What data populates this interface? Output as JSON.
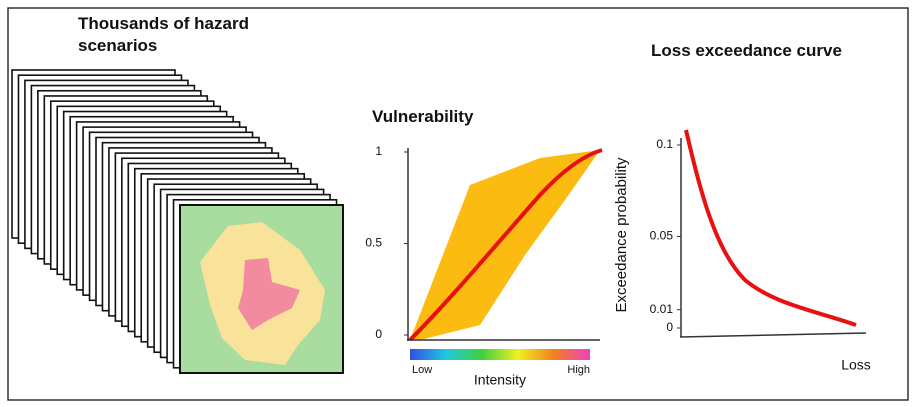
{
  "hazard": {
    "title": "Thousands of hazard scenarios"
  },
  "vulnerability": {
    "title": "Vulnerability",
    "ylim": [
      0,
      1
    ],
    "yticks": [
      0,
      0.5,
      1
    ],
    "x_low": "Low",
    "x_label": "Intensity",
    "x_high": "High"
  },
  "loss_curve": {
    "title": "Loss exceedance curve",
    "ylim": [
      0,
      0.1
    ],
    "yticks": [
      0,
      0.01,
      0.05,
      0.1
    ],
    "y_label": "Exceedance probability",
    "x_label": "Loss"
  }
}
